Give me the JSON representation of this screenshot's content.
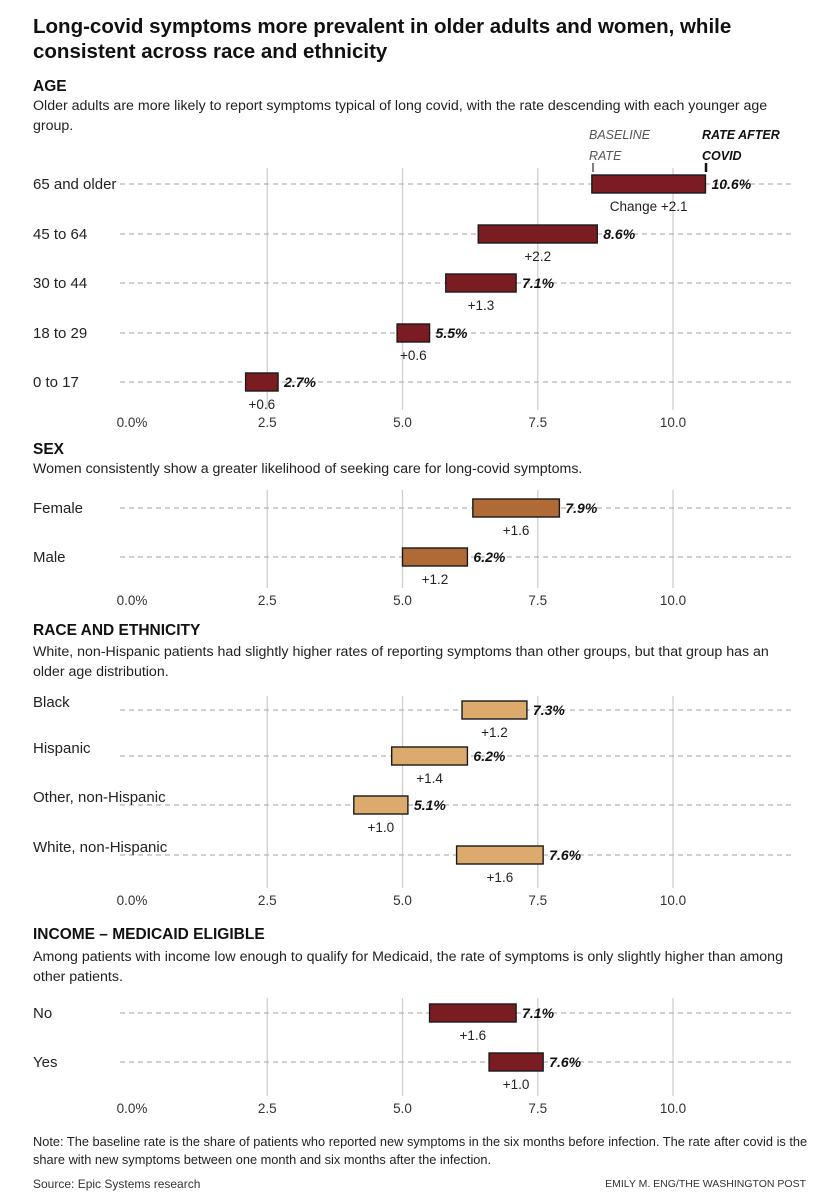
{
  "title": "Long-covid symptoms more prevalent in older adults and women, while consistent across race and ethnicity",
  "note": "Note: The baseline rate is the share of patients who reported new symptoms in the six months before infection. The rate after covid is the share with new symptoms between one month and six months after the infection.",
  "source": "Source: Epic Systems research",
  "credit": "EMILY M. ENG/THE WASHINGTON POST",
  "key": {
    "baseline": [
      "BASELINE",
      "RATE"
    ],
    "after": [
      "RATE AFTER",
      "COVID"
    ]
  },
  "change_prefix": "Change ",
  "chart_data": [
    {
      "type": "dumbbell",
      "title": "AGE",
      "subtitle": "Older adults are more likely to report symptoms typical of long covid, with the rate descending with each younger age group.",
      "xlim": [
        0,
        10
      ],
      "ticks": [
        "0.0%",
        "2.5",
        "5.0",
        "7.5",
        "10.0"
      ],
      "color": "#7a1c22",
      "categories": [
        "65 and older",
        "45 to 64",
        "30 to 44",
        "18 to 29",
        "0 to 17"
      ],
      "baseline": [
        8.5,
        6.4,
        5.8,
        4.9,
        2.1
      ],
      "after": [
        10.6,
        8.6,
        7.1,
        5.5,
        2.7
      ],
      "value_labels": [
        "10.6%",
        "8.6%",
        "7.1%",
        "5.5%",
        "2.7%"
      ],
      "change_labels": [
        "+2.1",
        "+2.2",
        "+1.3",
        "+0.6",
        "+0.6"
      ]
    },
    {
      "type": "dumbbell",
      "title": "SEX",
      "subtitle": "Women consistently show a greater likelihood of seeking care for long-covid symptoms.",
      "xlim": [
        0,
        10
      ],
      "ticks": [
        "0.0%",
        "2.5",
        "5.0",
        "7.5",
        "10.0"
      ],
      "color": "#b06a35",
      "categories": [
        "Female",
        "Male"
      ],
      "baseline": [
        6.3,
        5.0
      ],
      "after": [
        7.9,
        6.2
      ],
      "value_labels": [
        "7.9%",
        "6.2%"
      ],
      "change_labels": [
        "+1.6",
        "+1.2"
      ]
    },
    {
      "type": "dumbbell",
      "title": "RACE AND ETHNICITY",
      "subtitle": "White, non-Hispanic patients had slightly higher rates of reporting symptoms than other groups, but that group has an older age distribution.",
      "xlim": [
        0,
        10
      ],
      "ticks": [
        "0.0%",
        "2.5",
        "5.0",
        "7.5",
        "10.0"
      ],
      "color": "#dcaa6c",
      "categories": [
        "Black",
        "Hispanic",
        "Other, non-Hispanic",
        "White, non-Hispanic"
      ],
      "baseline": [
        6.1,
        4.8,
        4.1,
        6.0
      ],
      "after": [
        7.3,
        6.2,
        5.1,
        7.6
      ],
      "value_labels": [
        "7.3%",
        "6.2%",
        "5.1%",
        "7.6%"
      ],
      "change_labels": [
        "+1.2",
        "+1.4",
        "+1.0",
        "+1.6"
      ]
    },
    {
      "type": "dumbbell",
      "title": "INCOME – MEDICAID ELIGIBLE",
      "subtitle": "Among patients with income low enough to qualify for Medicaid, the rate of symptoms is only slightly higher than among other patients.",
      "xlim": [
        0,
        10
      ],
      "ticks": [
        "0.0%",
        "2.5",
        "5.0",
        "7.5",
        "10.0"
      ],
      "color": "#7a1c22",
      "categories": [
        "No",
        "Yes"
      ],
      "baseline": [
        5.5,
        6.6
      ],
      "after": [
        7.1,
        7.6
      ],
      "value_labels": [
        "7.1%",
        "7.6%"
      ],
      "change_labels": [
        "+1.6",
        "+1.0"
      ]
    }
  ]
}
